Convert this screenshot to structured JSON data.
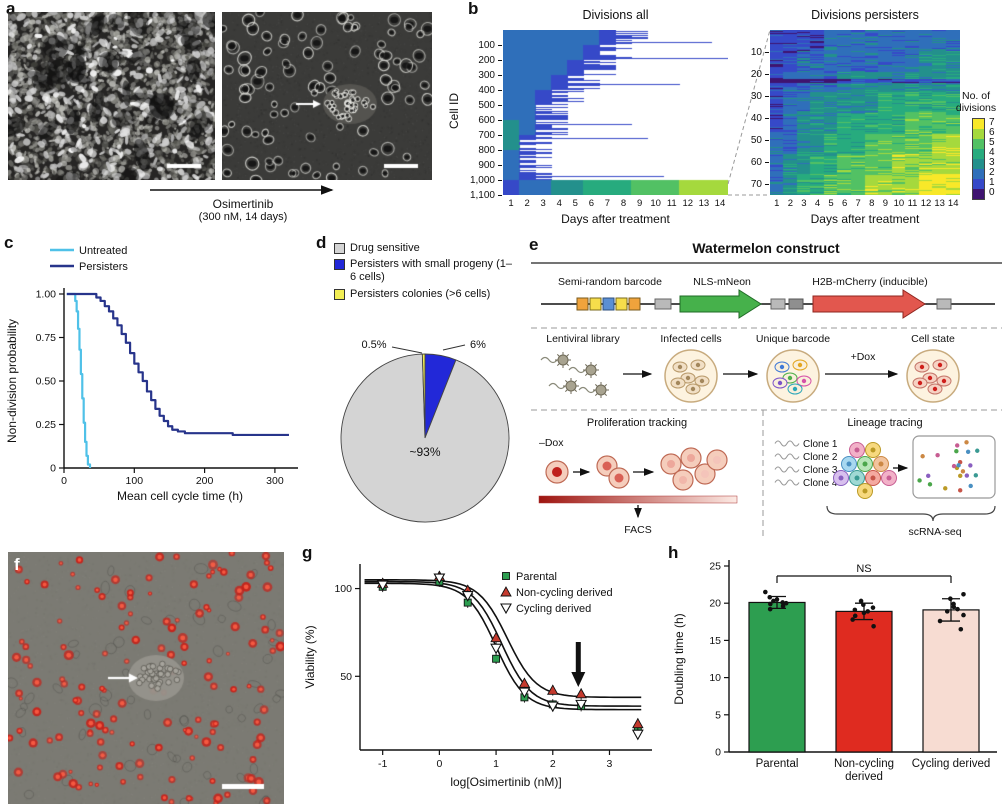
{
  "colormap": {
    "label_line1": "No. of",
    "label_line2": "divisions",
    "ticks": [
      "7",
      "6",
      "5",
      "4",
      "3",
      "2",
      "1",
      "0"
    ],
    "stops": [
      "#3f1470",
      "#3649c8",
      "#2f6fba",
      "#23908c",
      "#27ab7e",
      "#52c164",
      "#a5d93d",
      "#f8e829"
    ]
  },
  "panels": {
    "a": {
      "label": "a",
      "treatment_line1": "Osimertinib",
      "treatment_line2": "(300 nM, 14 days)"
    },
    "b": {
      "label": "b"
    },
    "c": {
      "label": "c"
    },
    "d": {
      "label": "d"
    },
    "e": {
      "label": "e",
      "title": "Watermelon construct",
      "construct_labels": {
        "barcode": "Semi-random barcode",
        "mneon": "NLS-mNeon",
        "mcherry": "H2B-mCherry (inducible)"
      },
      "workflow_labels": {
        "lentiviral": "Lentiviral library",
        "infected": "Infected cells",
        "barcode": "Unique barcode",
        "dox": "+Dox",
        "state": "Cell state"
      },
      "proliferation": {
        "heading": "Proliferation tracking",
        "dox": "–Dox",
        "facs": "FACS"
      },
      "lineage": {
        "heading": "Lineage tracing",
        "clones": [
          "Clone 1",
          "Clone 2",
          "Clone 3",
          "Clone 4"
        ],
        "scrnaseq": "scRNA-seq"
      }
    },
    "f": {
      "label": "f"
    },
    "g": {
      "label": "g"
    },
    "h": {
      "label": "h"
    }
  },
  "chart_data": [
    {
      "id": "divisions_all",
      "type": "heatmap",
      "title": "Divisions all",
      "xlabel": "Days after treatment",
      "ylabel": "Cell ID",
      "x_ticks": [
        1,
        2,
        3,
        4,
        5,
        6,
        7,
        8,
        9,
        10,
        11,
        12,
        13,
        14
      ],
      "y_ticks": [
        "100",
        "200",
        "300",
        "400",
        "500",
        "600",
        "700",
        "800",
        "900",
        "1,000",
        "1,100"
      ],
      "y_step": 100,
      "rows": 1100,
      "days": 14,
      "value_range": [
        0,
        7
      ],
      "streak_fraction": 0.07,
      "streak_value": 1,
      "seed": 13,
      "bands": [
        [
          2,
          2,
          2,
          2,
          2,
          2,
          1,
          1,
          null,
          null,
          null,
          null,
          null,
          null
        ],
        [
          2,
          2,
          2,
          2,
          2,
          1,
          1,
          null,
          null,
          null,
          null,
          null,
          null,
          null
        ],
        [
          2,
          2,
          2,
          2,
          1,
          1,
          null,
          null,
          null,
          null,
          null,
          null,
          null,
          null
        ],
        [
          2,
          2,
          2,
          1,
          1,
          null,
          null,
          null,
          null,
          null,
          null,
          null,
          null,
          null
        ],
        [
          2,
          2,
          1,
          1,
          null,
          null,
          null,
          null,
          null,
          null,
          null,
          null,
          null,
          null
        ],
        [
          2,
          2,
          1,
          null,
          null,
          null,
          null,
          null,
          null,
          null,
          null,
          null,
          null,
          null
        ],
        [
          3,
          2,
          1,
          null,
          null,
          null,
          null,
          null,
          null,
          null,
          null,
          null,
          null,
          null
        ],
        [
          3,
          1,
          null,
          null,
          null,
          null,
          null,
          null,
          null,
          null,
          null,
          null,
          null,
          null
        ],
        [
          2,
          1,
          null,
          null,
          null,
          null,
          null,
          null,
          null,
          null,
          null,
          null,
          null,
          null
        ],
        [
          2,
          1,
          null,
          null,
          null,
          null,
          null,
          null,
          null,
          null,
          null,
          null,
          null,
          null
        ],
        [
          1,
          2,
          2,
          3,
          3,
          4,
          4,
          4,
          5,
          5,
          5,
          6,
          6,
          6
        ]
      ]
    },
    {
      "id": "divisions_persisters",
      "type": "heatmap",
      "title": "Divisions persisters",
      "xlabel": "Days after treatment",
      "x_ticks": [
        1,
        2,
        3,
        4,
        5,
        6,
        7,
        8,
        9,
        10,
        11,
        12,
        13,
        14
      ],
      "y_ticks": [
        "10",
        "20",
        "30",
        "40",
        "50",
        "60",
        "70"
      ],
      "y_step": 10,
      "rows": 75,
      "days": 14,
      "value_range": [
        0,
        7
      ],
      "noise": true,
      "dark_rows": [
        22,
        23
      ],
      "seed": 29,
      "bands": [
        [
          1,
          1,
          1,
          1,
          2,
          2,
          2,
          2,
          2,
          2,
          2,
          2,
          2,
          2
        ],
        [
          1,
          1,
          2,
          2,
          2,
          2,
          2,
          2,
          2,
          2,
          2,
          3,
          3,
          3
        ],
        [
          1,
          2,
          2,
          2,
          2,
          3,
          3,
          3,
          3,
          3,
          3,
          3,
          3,
          3
        ],
        [
          1,
          2,
          2,
          3,
          3,
          3,
          3,
          3,
          4,
          4,
          4,
          4,
          4,
          4
        ],
        [
          1,
          2,
          3,
          3,
          3,
          4,
          4,
          4,
          4,
          4,
          5,
          5,
          5,
          5
        ],
        [
          2,
          2,
          3,
          3,
          4,
          4,
          4,
          5,
          5,
          5,
          5,
          5,
          6,
          6
        ],
        [
          2,
          3,
          3,
          4,
          4,
          5,
          5,
          5,
          5,
          6,
          6,
          6,
          6,
          6
        ],
        [
          2,
          3,
          4,
          4,
          5,
          5,
          5,
          6,
          6,
          6,
          6,
          7,
          7,
          7
        ]
      ]
    },
    {
      "id": "non_division_probability",
      "type": "line",
      "step": true,
      "xlabel": "Mean cell cycle time (h)",
      "ylabel": "Non-division probability",
      "xlim": [
        0,
        330
      ],
      "ylim": [
        0,
        1
      ],
      "x_ticks": [
        0,
        100,
        200,
        300
      ],
      "y_ticks": [
        {
          "v": 1,
          "label": "1.00"
        },
        {
          "v": 0.75,
          "label": "0.75"
        },
        {
          "v": 0.5,
          "label": "0.50"
        },
        {
          "v": 0.25,
          "label": "0.25"
        },
        {
          "v": 0,
          "label": "0"
        }
      ],
      "series": [
        {
          "name": "Untreated",
          "color": "#4fc1e8",
          "points": [
            [
              4,
              1
            ],
            [
              14,
              1
            ],
            [
              16,
              0.96
            ],
            [
              18,
              0.9
            ],
            [
              20,
              0.8
            ],
            [
              22,
              0.68
            ],
            [
              24,
              0.54
            ],
            [
              26,
              0.4
            ],
            [
              28,
              0.26
            ],
            [
              30,
              0.15
            ],
            [
              32,
              0.07
            ],
            [
              34,
              0.02
            ],
            [
              37,
              0
            ]
          ]
        },
        {
          "name": "Persisters",
          "color": "#27348b",
          "points": [
            [
              4,
              1
            ],
            [
              40,
              1
            ],
            [
              46,
              0.98
            ],
            [
              52,
              0.96
            ],
            [
              58,
              0.93
            ],
            [
              64,
              0.9
            ],
            [
              70,
              0.86
            ],
            [
              76,
              0.82
            ],
            [
              82,
              0.77
            ],
            [
              88,
              0.72
            ],
            [
              94,
              0.66
            ],
            [
              100,
              0.6
            ],
            [
              106,
              0.55
            ],
            [
              112,
              0.5
            ],
            [
              118,
              0.44
            ],
            [
              124,
              0.39
            ],
            [
              130,
              0.34
            ],
            [
              136,
              0.3
            ],
            [
              142,
              0.27
            ],
            [
              148,
              0.24
            ],
            [
              154,
              0.22
            ],
            [
              162,
              0.21
            ],
            [
              172,
              0.2
            ],
            [
              190,
              0.2
            ],
            [
              210,
              0.2
            ],
            [
              240,
              0.19
            ],
            [
              320,
              0.19
            ]
          ]
        }
      ]
    },
    {
      "id": "persister_fraction",
      "type": "pie",
      "slices": [
        {
          "label": "Drug sensitive",
          "value": 93.5,
          "display": "~93%",
          "color": "#d4d4d4"
        },
        {
          "label": "Persisters with small progeny (1–6 cells)",
          "value": 6,
          "display": "6%",
          "color": "#2228d8"
        },
        {
          "label": "Persisters colonies (>6 cells)",
          "value": 0.5,
          "display": "0.5%",
          "color": "#f2ee54"
        }
      ]
    },
    {
      "id": "viability_dose_response",
      "type": "scatter",
      "xlabel": "log[Osimertinib (nM)]",
      "ylabel": "Viability (%)",
      "xlim": [
        -1.4,
        3.75
      ],
      "ylim": [
        8,
        114
      ],
      "x_ticks": [
        -1,
        0,
        1,
        2,
        3
      ],
      "y_ticks": [
        50,
        100
      ],
      "x": [
        -1,
        0,
        0.5,
        1,
        1.5,
        2,
        2.5,
        3.5
      ],
      "errors": 3,
      "arrow_x": 2.45,
      "series": [
        {
          "name": "Parental",
          "marker": "square",
          "color": "#2d9e50",
          "values": [
            101,
            104,
            92,
            60,
            38,
            34,
            33,
            20
          ],
          "fit": {
            "top": 103,
            "bottom": 31,
            "ec50": 1.0,
            "hill": 1.7
          }
        },
        {
          "name": "Non-cycling derived",
          "marker": "triangle-up",
          "color": "#c53a2e",
          "values": [
            103,
            107,
            99,
            72,
            46,
            42,
            40,
            23
          ],
          "fit": {
            "top": 105,
            "bottom": 38,
            "ec50": 1.2,
            "hill": 1.7
          }
        },
        {
          "name": "Cycling derived",
          "marker": "triangle-down-open",
          "color": "#ffffff",
          "values": [
            102,
            106,
            96,
            66,
            41,
            33,
            34,
            17
          ],
          "fit": {
            "top": 104,
            "bottom": 33,
            "ec50": 1.1,
            "hill": 1.7
          }
        }
      ]
    },
    {
      "id": "doubling_time",
      "type": "bar",
      "ylabel": "Doubling time (h)",
      "ylim": [
        0,
        25
      ],
      "y_ticks": [
        0,
        5,
        10,
        15,
        20,
        25
      ],
      "annotation": "NS",
      "categories": [
        "Parental",
        "Non-cycling derived",
        "Cycling derived"
      ],
      "bars": [
        {
          "mean": 20.1,
          "sd": 0.8,
          "color": "#2d9e50",
          "points": [
            19.2,
            19.6,
            19.9,
            20.0,
            20.1,
            20.3,
            20.5,
            20.8,
            21.5
          ]
        },
        {
          "mean": 18.9,
          "sd": 1.1,
          "color": "#df2b20",
          "points": [
            16.9,
            17.8,
            18.3,
            18.7,
            18.9,
            19.1,
            19.4,
            19.8,
            20.3
          ]
        },
        {
          "mean": 19.1,
          "sd": 1.5,
          "color": "#f7dcd2",
          "points": [
            16.5,
            17.6,
            18.4,
            18.9,
            19.2,
            19.5,
            19.9,
            20.6,
            21.2
          ]
        }
      ]
    }
  ]
}
